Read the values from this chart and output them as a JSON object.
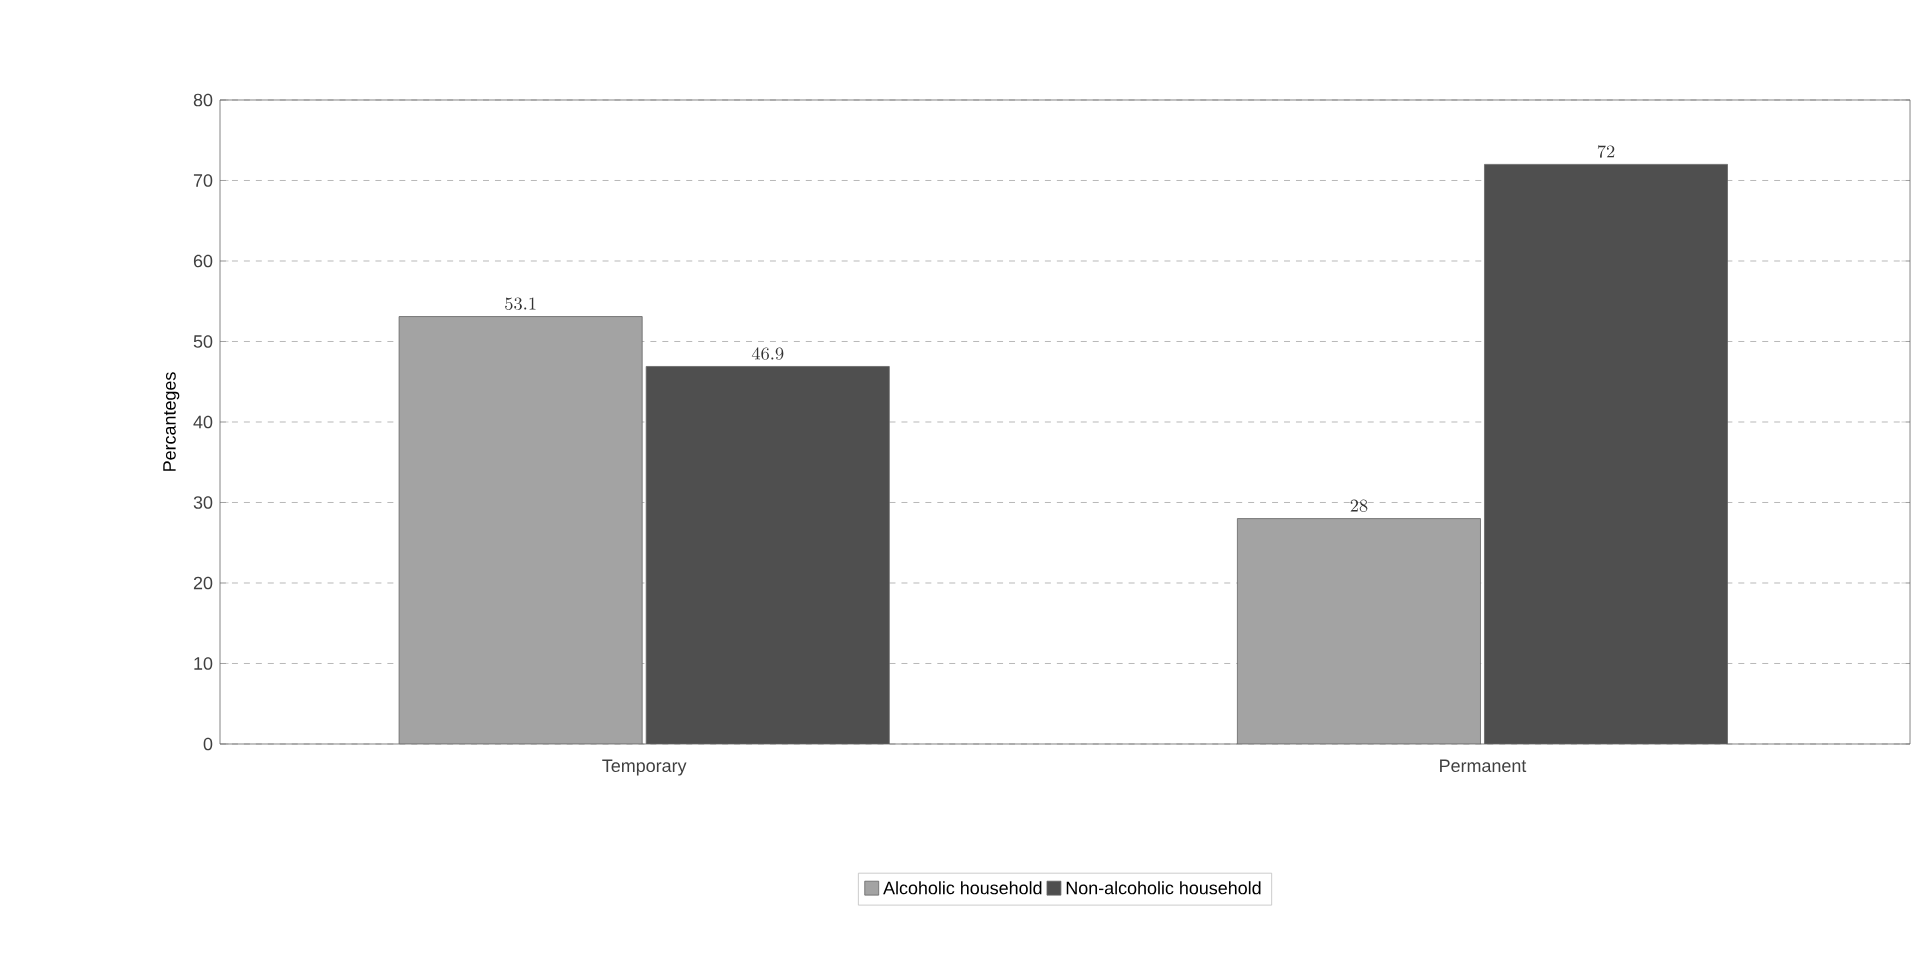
{
  "chart_data": {
    "type": "bar",
    "ylabel": "Percanteges",
    "categories": [
      "Temporary",
      "Permanent"
    ],
    "series": [
      {
        "name": "Alcoholic household",
        "color": "#a3a3a3",
        "values": [
          53.1,
          28
        ]
      },
      {
        "name": "Non-alcoholic household",
        "color": "#4f4f4f",
        "values": [
          46.9,
          72
        ]
      }
    ],
    "ylim": [
      0,
      80
    ],
    "yticks": [
      0,
      10,
      20,
      30,
      40,
      50,
      60,
      70,
      80
    ],
    "grid": "y",
    "legend": "bottom",
    "data_labels": true
  }
}
